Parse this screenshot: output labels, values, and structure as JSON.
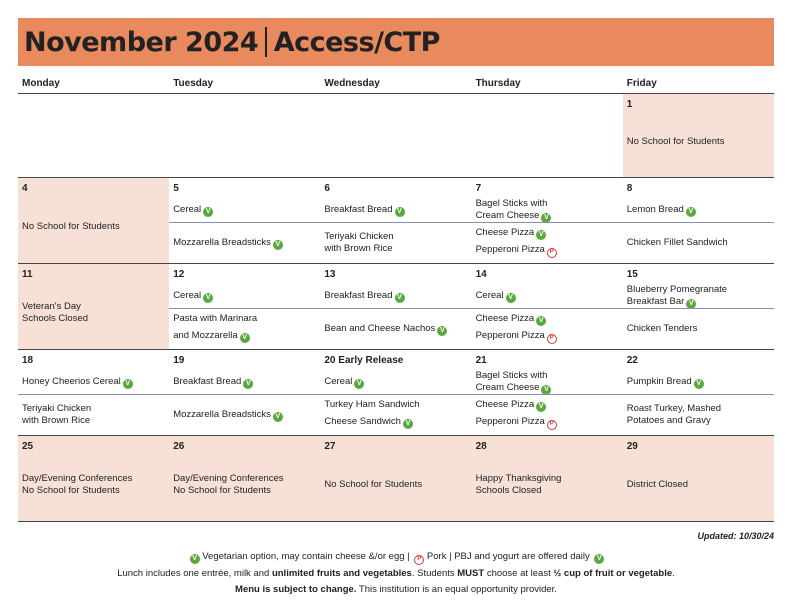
{
  "header": {
    "month": "November 2024",
    "program": "Access/CTP"
  },
  "days": [
    "Monday",
    "Tuesday",
    "Wednesday",
    "Thursday",
    "Friday"
  ],
  "weeks": [
    {
      "height": 84,
      "cells": [
        {
          "type": "empty"
        },
        {
          "type": "empty"
        },
        {
          "type": "empty"
        },
        {
          "type": "empty"
        },
        {
          "type": "full",
          "num": "1",
          "text": [
            "No School for Students"
          ]
        }
      ]
    },
    {
      "height": 86,
      "cells": [
        {
          "type": "full",
          "num": "4",
          "text": [
            "No School for Students"
          ]
        },
        {
          "type": "menu",
          "num": "5",
          "top": [
            [
              "Cereal",
              "v"
            ]
          ],
          "bot": [
            [
              "Mozzarella Breadsticks",
              "v"
            ]
          ]
        },
        {
          "type": "menu",
          "num": "6",
          "top": [
            [
              "Breakfast Bread",
              "v"
            ]
          ],
          "bot": [
            [
              "Teriyaki Chicken",
              ""
            ],
            [
              "with Brown Rice",
              ""
            ]
          ]
        },
        {
          "type": "menu",
          "num": "7",
          "top": [
            [
              "Bagel Sticks with",
              ""
            ],
            [
              "Cream Cheese",
              "v"
            ]
          ],
          "bot": [
            [
              "Cheese Pizza",
              "v"
            ],
            [
              "Pepperoni Pizza",
              "p"
            ]
          ]
        },
        {
          "type": "menu",
          "num": "8",
          "top": [
            [
              "Lemon Bread",
              "v"
            ]
          ],
          "bot": [
            [
              "Chicken Fillet Sandwich",
              ""
            ]
          ]
        }
      ]
    },
    {
      "height": 86,
      "cells": [
        {
          "type": "full",
          "num": "11",
          "text": [
            "Veteran's Day",
            "Schools Closed"
          ]
        },
        {
          "type": "menu",
          "num": "12",
          "top": [
            [
              "Cereal",
              "v"
            ]
          ],
          "bot": [
            [
              "Pasta with Marinara",
              ""
            ],
            [
              "and Mozzarella",
              "v"
            ]
          ]
        },
        {
          "type": "menu",
          "num": "13",
          "top": [
            [
              "Breakfast Bread",
              "v"
            ]
          ],
          "bot": [
            [
              "Bean and Cheese Nachos",
              "v"
            ]
          ]
        },
        {
          "type": "menu",
          "num": "14",
          "top": [
            [
              "Cereal",
              "v"
            ]
          ],
          "bot": [
            [
              "Cheese Pizza",
              "v"
            ],
            [
              "Pepperoni Pizza",
              "p"
            ]
          ]
        },
        {
          "type": "menu",
          "num": "15",
          "top": [
            [
              "Blueberry Pomegranate",
              ""
            ],
            [
              "Breakfast Bar",
              "v"
            ]
          ],
          "bot": [
            [
              "Chicken Tenders",
              ""
            ]
          ]
        }
      ]
    },
    {
      "height": 86,
      "cells": [
        {
          "type": "menu",
          "num": "18",
          "top": [
            [
              "Honey Cheerios Cereal",
              "v"
            ]
          ],
          "bot": [
            [
              "Teriyaki Chicken",
              ""
            ],
            [
              "with Brown Rice",
              ""
            ]
          ]
        },
        {
          "type": "menu",
          "num": "19",
          "top": [
            [
              "Breakfast Bread",
              "v"
            ]
          ],
          "bot": [
            [
              "Mozzarella Breadsticks",
              "v"
            ]
          ]
        },
        {
          "type": "menu",
          "num": "20 Early Release",
          "top": [
            [
              "Cereal",
              "v"
            ]
          ],
          "bot": [
            [
              "Turkey Ham Sandwich",
              ""
            ],
            [
              "Cheese Sandwich",
              "v"
            ]
          ]
        },
        {
          "type": "menu",
          "num": "21",
          "top": [
            [
              "Bagel Sticks with",
              ""
            ],
            [
              "Cream Cheese",
              "v"
            ]
          ],
          "bot": [
            [
              "Cheese Pizza",
              "v"
            ],
            [
              "Pepperoni Pizza",
              "p"
            ]
          ]
        },
        {
          "type": "menu",
          "num": "22",
          "top": [
            [
              "Pumpkin Bread",
              "v"
            ]
          ],
          "bot": [
            [
              "Roast Turkey, Mashed",
              ""
            ],
            [
              "Potatoes and Gravy",
              ""
            ]
          ]
        }
      ]
    },
    {
      "height": 86,
      "cells": [
        {
          "type": "full",
          "num": "25",
          "text": [
            "Day/Evening Conferences",
            "No School for Students"
          ]
        },
        {
          "type": "full",
          "num": "26",
          "text": [
            "Day/Evening Conferences",
            "No School for Students"
          ]
        },
        {
          "type": "full",
          "num": "27",
          "text": [
            "No School for Students"
          ]
        },
        {
          "type": "full",
          "num": "28",
          "text": [
            "Happy Thanksgiving",
            "Schools Closed"
          ]
        },
        {
          "type": "full",
          "num": "29",
          "text": [
            "District Closed"
          ]
        }
      ]
    }
  ],
  "updated": "Updated: 10/30/24",
  "footer": {
    "veg": "Vegetarian option, may contain cheese &/or egg",
    "pork": "Pork",
    "pbj": "PBJ and yogurt are offered daily",
    "line2_a": "Lunch includes one entrée, milk and ",
    "line2_b": "unlimited fruits and vegetables",
    "line2_c": ". Students ",
    "line2_d": "MUST",
    "line2_e": " choose at least ",
    "line2_f": "½ cup of fruit or vegetable",
    "line2_g": ".",
    "line3_a": "Menu is subject to change.",
    "line3_b": " This institution is an equal opportunity provider."
  },
  "icons": {
    "vegetarian": "vegetarian-icon",
    "pork": "pork-icon"
  },
  "colors": {
    "header": "#e8895e",
    "highlight": "#f7e1d7",
    "veg": "#5aa83e",
    "pork": "#d23b3b"
  }
}
